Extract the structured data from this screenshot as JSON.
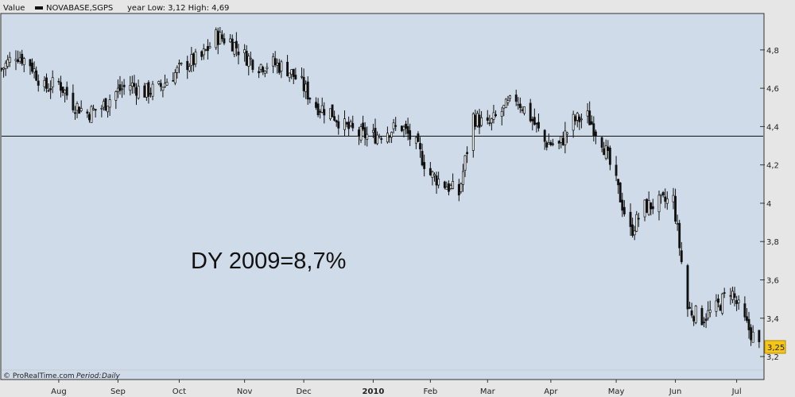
{
  "header": {
    "value_label": "Value",
    "symbol": "NOVABASE,SGPS",
    "year_range_text": "year Low: 3,12 High: 4,69"
  },
  "footer": {
    "brand": "© ProRealTime.com",
    "period_label": "Period:",
    "period_value": "Daily"
  },
  "colors": {
    "plot_bg": "#cfdbe8",
    "frame_bg": "#e6e6e6",
    "candle": "#111111",
    "price_tag": "#f5c518"
  },
  "chart_data": {
    "type": "candlestick",
    "title": "NOVABASE,SGPS",
    "annotation": "DY 2009=8,7%",
    "ylim": [
      3.08,
      4.99
    ],
    "y_ticks": [
      "3,2",
      "3,4",
      "3,6",
      "3,8",
      "4",
      "4,2",
      "4,4",
      "4,6",
      "4,8"
    ],
    "y_tick_values": [
      3.2,
      3.4,
      3.6,
      3.8,
      4.0,
      4.2,
      4.4,
      4.6,
      4.8
    ],
    "x_ticks": [
      "Aug",
      "Sep",
      "Oct",
      "Nov",
      "Dec",
      "2010",
      "Feb",
      "Mar",
      "Apr",
      "May",
      "Jun",
      "Jul"
    ],
    "x_tick_dates": [
      "2009-08-03",
      "2009-09-01",
      "2009-10-01",
      "2009-11-02",
      "2009-12-01",
      "2010-01-04",
      "2010-02-01",
      "2010-03-01",
      "2010-04-01",
      "2010-05-03",
      "2010-06-01",
      "2010-07-01"
    ],
    "x_range": [
      "2009-07-06",
      "2010-07-14"
    ],
    "reference_line": 4.35,
    "last_price": 3.25,
    "last_price_label": "3,25",
    "series": [
      {
        "points": [
          {
            "date": "2009-07-06",
            "close": 4.7
          },
          {
            "date": "2009-07-13",
            "close": 4.78
          },
          {
            "date": "2009-07-20",
            "close": 4.73
          },
          {
            "date": "2009-07-27",
            "close": 4.6
          },
          {
            "date": "2009-08-03",
            "close": 4.63
          },
          {
            "date": "2009-08-10",
            "close": 4.52
          },
          {
            "date": "2009-08-17",
            "close": 4.47
          },
          {
            "date": "2009-08-24",
            "close": 4.5
          },
          {
            "date": "2009-08-31",
            "close": 4.58
          },
          {
            "date": "2009-09-07",
            "close": 4.62
          },
          {
            "date": "2009-09-14",
            "close": 4.58
          },
          {
            "date": "2009-09-21",
            "close": 4.6
          },
          {
            "date": "2009-09-28",
            "close": 4.67
          },
          {
            "date": "2009-10-05",
            "close": 4.73
          },
          {
            "date": "2009-10-12",
            "close": 4.76
          },
          {
            "date": "2009-10-19",
            "close": 4.87
          },
          {
            "date": "2009-10-26",
            "close": 4.85
          },
          {
            "date": "2009-11-02",
            "close": 4.77
          },
          {
            "date": "2009-11-09",
            "close": 4.72
          },
          {
            "date": "2009-11-16",
            "close": 4.73
          },
          {
            "date": "2009-11-23",
            "close": 4.7
          },
          {
            "date": "2009-11-30",
            "close": 4.62
          },
          {
            "date": "2009-12-07",
            "close": 4.51
          },
          {
            "date": "2009-12-14",
            "close": 4.48
          },
          {
            "date": "2009-12-21",
            "close": 4.4
          },
          {
            "date": "2009-12-28",
            "close": 4.36
          },
          {
            "date": "2010-01-04",
            "close": 4.35
          },
          {
            "date": "2010-01-11",
            "close": 4.38
          },
          {
            "date": "2010-01-18",
            "close": 4.4
          },
          {
            "date": "2010-01-25",
            "close": 4.3
          },
          {
            "date": "2010-02-01",
            "close": 4.15
          },
          {
            "date": "2010-02-08",
            "close": 4.1
          },
          {
            "date": "2010-02-15",
            "close": 4.05
          },
          {
            "date": "2010-02-22",
            "close": 4.45
          },
          {
            "date": "2010-03-01",
            "close": 4.4
          },
          {
            "date": "2010-03-08",
            "close": 4.48
          },
          {
            "date": "2010-03-15",
            "close": 4.55
          },
          {
            "date": "2010-03-22",
            "close": 4.45
          },
          {
            "date": "2010-03-29",
            "close": 4.32
          },
          {
            "date": "2010-04-05",
            "close": 4.3
          },
          {
            "date": "2010-04-12",
            "close": 4.43
          },
          {
            "date": "2010-04-19",
            "close": 4.45
          },
          {
            "date": "2010-04-26",
            "close": 4.33
          },
          {
            "date": "2010-05-03",
            "close": 4.1
          },
          {
            "date": "2010-05-10",
            "close": 3.85
          },
          {
            "date": "2010-05-17",
            "close": 3.98
          },
          {
            "date": "2010-05-24",
            "close": 4.0
          },
          {
            "date": "2010-05-31",
            "close": 4.02
          },
          {
            "date": "2010-06-07",
            "close": 3.45
          },
          {
            "date": "2010-06-14",
            "close": 3.4
          },
          {
            "date": "2010-06-21",
            "close": 3.45
          },
          {
            "date": "2010-06-28",
            "close": 3.55
          },
          {
            "date": "2010-07-05",
            "close": 3.38
          },
          {
            "date": "2010-07-12",
            "close": 3.25
          }
        ]
      }
    ]
  }
}
